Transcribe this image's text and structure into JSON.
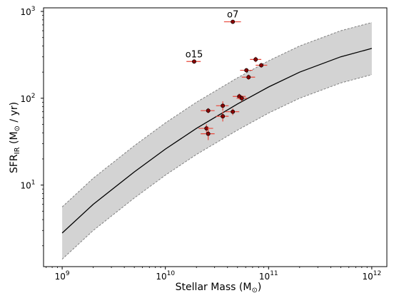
{
  "chart_data": {
    "type": "scatter",
    "title": "",
    "xlabel": {
      "prefix": "Stellar Mass (M",
      "suffix": ")"
    },
    "ylabel": {
      "prefix": "SFR",
      "sub": "IR",
      "mid": " (M",
      "suffix": " / yr)"
    },
    "xscale": "log",
    "yscale": "log",
    "xlim": [
      660000000.0,
      1400000000000.0
    ],
    "ylim": [
      1.15,
      1100
    ],
    "grid": false,
    "x_ticks": [
      {
        "value": 1000000000.0,
        "base": "10",
        "exp": "9"
      },
      {
        "value": 10000000000.0,
        "base": "10",
        "exp": "10"
      },
      {
        "value": 100000000000.0,
        "base": "10",
        "exp": "11"
      },
      {
        "value": 1000000000000.0,
        "base": "10",
        "exp": "12"
      }
    ],
    "y_ticks": [
      {
        "value": 10,
        "base": "10",
        "exp": "1"
      },
      {
        "value": 100,
        "base": "10",
        "exp": "2"
      },
      {
        "value": 1000,
        "base": "10",
        "exp": "3"
      }
    ],
    "relation": {
      "x": [
        1000000000.0,
        2000000000.0,
        5000000000.0,
        10000000000.0,
        20000000000.0,
        50000000000.0,
        100000000000.0,
        200000000000.0,
        500000000000.0,
        1000000000000.0
      ],
      "y": [
        2.8,
        6.0,
        14.2,
        26.0,
        45.0,
        86.0,
        135.0,
        200.0,
        300.0,
        375.0
      ],
      "y_lower": [
        1.4,
        3.0,
        7.1,
        13.0,
        22.5,
        43.0,
        67.5,
        100.0,
        150.0,
        187.0
      ],
      "y_upper": [
        5.6,
        12.0,
        28.4,
        52.0,
        90.0,
        172.0,
        270.0,
        400.0,
        600.0,
        745.0
      ],
      "line_color": "#000000",
      "band_color": "#d3d3d3",
      "band_edge_color": "#808080"
    },
    "points": [
      {
        "x": 45000000000.0,
        "y": 760,
        "xerr": [
          8000000000.0,
          9000000000.0
        ],
        "yerr": [
          40,
          40
        ],
        "label": "o7"
      },
      {
        "x": 19000000000.0,
        "y": 265,
        "xerr": [
          3000000000.0,
          3000000000.0
        ],
        "yerr": [
          15,
          15
        ],
        "label": "o15"
      },
      {
        "x": 75000000000.0,
        "y": 280,
        "xerr": [
          9000000000.0,
          10000000000.0
        ],
        "yerr": [
          20,
          20
        ],
        "label": ""
      },
      {
        "x": 85000000000.0,
        "y": 240,
        "xerr": [
          10000000000.0,
          12000000000.0
        ],
        "yerr": [
          15,
          15
        ],
        "label": ""
      },
      {
        "x": 61000000000.0,
        "y": 210,
        "xerr": [
          8000000000.0,
          9000000000.0
        ],
        "yerr": [
          12,
          12
        ],
        "label": ""
      },
      {
        "x": 64000000000.0,
        "y": 175,
        "xerr": [
          9000000000.0,
          10000000000.0
        ],
        "yerr": [
          12,
          12
        ],
        "label": ""
      },
      {
        "x": 52000000000.0,
        "y": 105,
        "xerr": [
          7000000000.0,
          8000000000.0
        ],
        "yerr": [
          8,
          8
        ],
        "label": ""
      },
      {
        "x": 55000000000.0,
        "y": 100,
        "xerr": [
          6000000000.0,
          7000000000.0
        ],
        "yerr": [
          8,
          8
        ],
        "label": ""
      },
      {
        "x": 36000000000.0,
        "y": 82,
        "xerr": [
          5000000000.0,
          5000000000.0
        ],
        "yerr": [
          10,
          10
        ],
        "label": ""
      },
      {
        "x": 26000000000.0,
        "y": 72,
        "xerr": [
          4000000000.0,
          4000000000.0
        ],
        "yerr": [
          5,
          5
        ],
        "label": ""
      },
      {
        "x": 45000000000.0,
        "y": 70,
        "xerr": [
          7000000000.0,
          7000000000.0
        ],
        "yerr": [
          6,
          6
        ],
        "label": ""
      },
      {
        "x": 36000000000.0,
        "y": 62,
        "xerr": [
          5000000000.0,
          5000000000.0
        ],
        "yerr": [
          8,
          8
        ],
        "label": ""
      },
      {
        "x": 25000000000.0,
        "y": 45,
        "xerr": [
          4000000000.0,
          4000000000.0
        ],
        "yerr": [
          5,
          5
        ],
        "label": ""
      },
      {
        "x": 26000000000.0,
        "y": 39,
        "xerr": [
          4000000000.0,
          4000000000.0
        ],
        "yerr": [
          6,
          8
        ],
        "label": ""
      }
    ],
    "marker_color": "#8b0000",
    "errorbar_color": "#e8473a"
  }
}
